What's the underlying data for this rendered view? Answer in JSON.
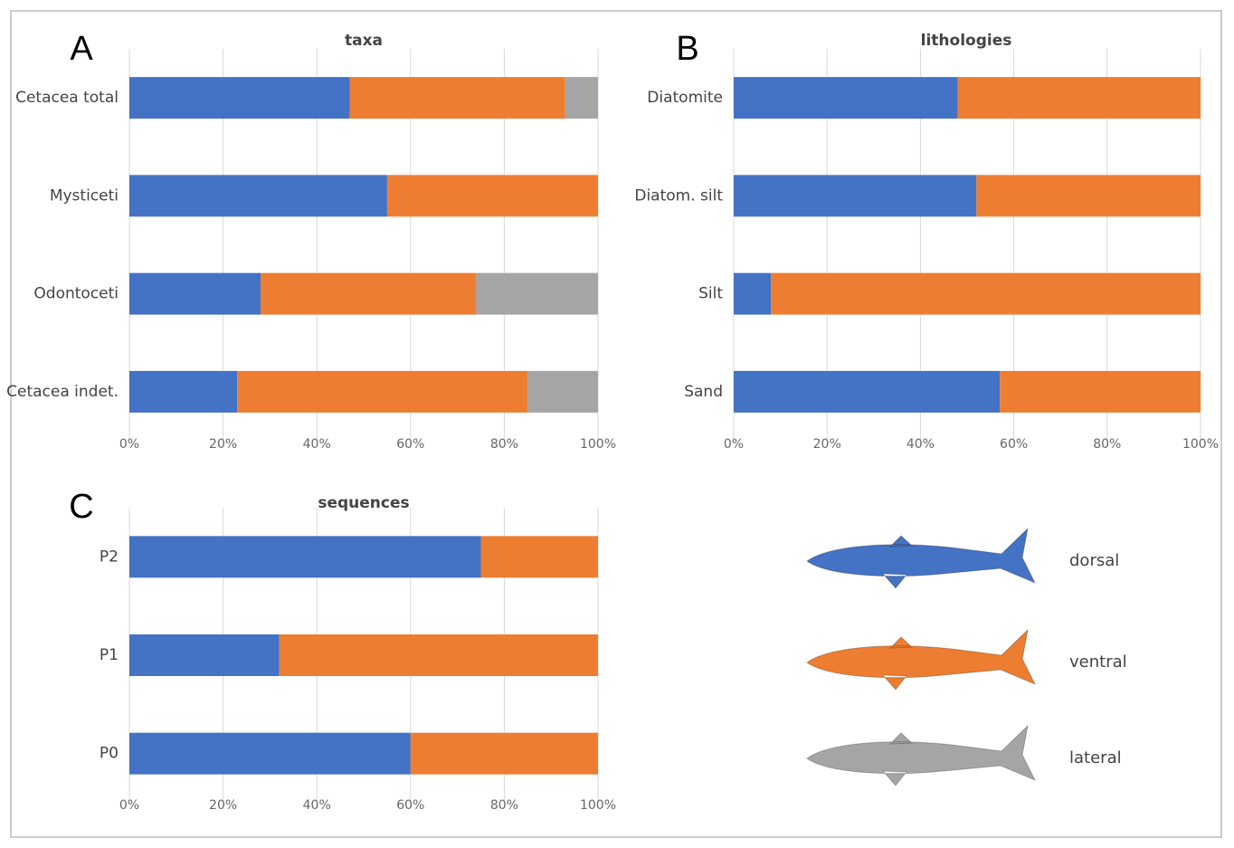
{
  "chart_data": [
    {
      "type": "bar",
      "orientation": "horizontal",
      "stacked": true,
      "panel_label": "A",
      "title": "taxa",
      "categories": [
        "Cetacea total",
        "Mysticeti",
        "Odontoceti",
        "Cetacea indet."
      ],
      "series": [
        {
          "name": "dorsal",
          "color": "#4472c4",
          "values": [
            47,
            55,
            28,
            23
          ]
        },
        {
          "name": "ventral",
          "color": "#ed7d31",
          "values": [
            46,
            45,
            46,
            62
          ]
        },
        {
          "name": "lateral",
          "color": "#a5a5a5",
          "values": [
            7,
            0,
            26,
            15
          ]
        }
      ],
      "xlim": [
        0,
        100
      ],
      "xticks": [
        {
          "value": 0,
          "label": "0%"
        },
        {
          "value": 20,
          "label": "20%"
        },
        {
          "value": 40,
          "label": "40%"
        },
        {
          "value": 60,
          "label": "60%"
        },
        {
          "value": 80,
          "label": "80%"
        },
        {
          "value": 100,
          "label": "100%"
        }
      ],
      "grid": true
    },
    {
      "type": "bar",
      "orientation": "horizontal",
      "stacked": true,
      "panel_label": "B",
      "title": "lithologies",
      "categories": [
        "Diatomite",
        "Diatom. silt",
        "Silt",
        "Sand"
      ],
      "series": [
        {
          "name": "dorsal",
          "color": "#4472c4",
          "values": [
            48,
            52,
            8,
            57
          ]
        },
        {
          "name": "ventral",
          "color": "#ed7d31",
          "values": [
            52,
            48,
            92,
            43
          ]
        }
      ],
      "xlim": [
        0,
        100
      ],
      "xticks": [
        {
          "value": 0,
          "label": "0%"
        },
        {
          "value": 20,
          "label": "20%"
        },
        {
          "value": 40,
          "label": "40%"
        },
        {
          "value": 60,
          "label": "60%"
        },
        {
          "value": 80,
          "label": "80%"
        },
        {
          "value": 100,
          "label": "100%"
        }
      ],
      "grid": true
    },
    {
      "type": "bar",
      "orientation": "horizontal",
      "stacked": true,
      "panel_label": "C",
      "title": "sequences",
      "categories": [
        "P2",
        "P1",
        "P0"
      ],
      "series": [
        {
          "name": "dorsal",
          "color": "#4472c4",
          "values": [
            75,
            32,
            60
          ]
        },
        {
          "name": "ventral",
          "color": "#ed7d31",
          "values": [
            25,
            68,
            40
          ]
        }
      ],
      "xlim": [
        0,
        100
      ],
      "xticks": [
        {
          "value": 0,
          "label": "0%"
        },
        {
          "value": 20,
          "label": "20%"
        },
        {
          "value": 40,
          "label": "40%"
        },
        {
          "value": 60,
          "label": "60%"
        },
        {
          "value": 80,
          "label": "80%"
        },
        {
          "value": 100,
          "label": "100%"
        }
      ],
      "grid": true
    }
  ]
}
